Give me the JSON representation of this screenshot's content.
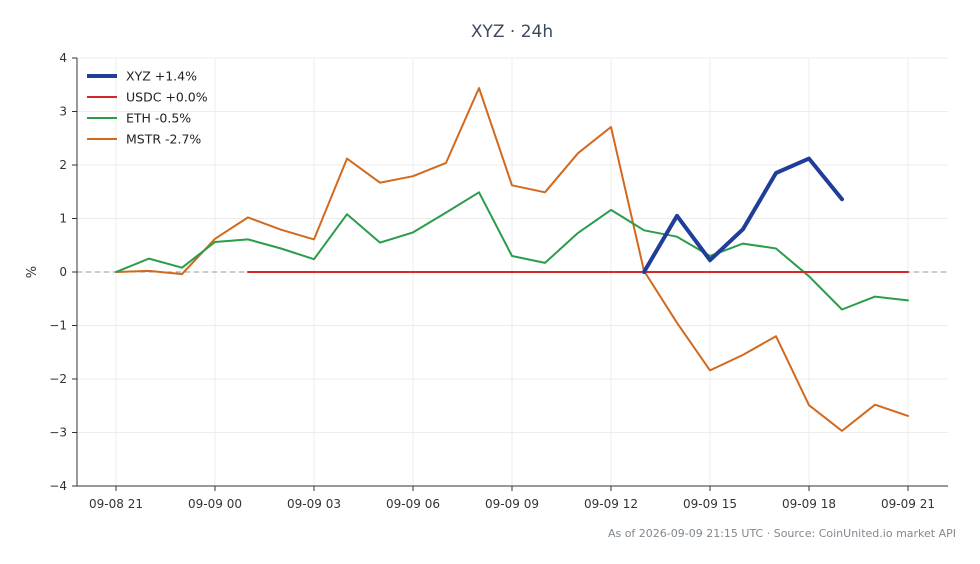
{
  "chart_data": {
    "type": "line",
    "title": "XYZ · 24h",
    "xlabel": "",
    "ylabel": "%",
    "ylim": [
      -4,
      4
    ],
    "yticks": [
      4,
      3,
      2,
      1,
      0,
      -1,
      -2,
      -3,
      -4
    ],
    "yticks_labels": [
      "4",
      "3",
      "2",
      "1",
      "0",
      "−1",
      "−2",
      "−3",
      "−4"
    ],
    "x_start": "2026-09-08 21:00",
    "x_end": "2026-09-09 21:00",
    "xticks_labels": [
      "09-08 21",
      "09-09 00",
      "09-09 03",
      "09-09 06",
      "09-09 09",
      "09-09 12",
      "09-09 15",
      "09-09 18",
      "09-09 21"
    ],
    "grid": true,
    "baseline": 0,
    "legend_position": "top-left",
    "series": [
      {
        "name": "XYZ +1.4%",
        "color": "#1f3d99",
        "x": [
          "2026-09-09 13:00",
          "2026-09-09 14:00",
          "2026-09-09 15:00",
          "2026-09-09 16:00",
          "2026-09-09 17:00",
          "2026-09-09 18:00",
          "2026-09-09 19:00"
        ],
        "values": [
          0.0,
          1.05,
          0.22,
          0.8,
          1.85,
          2.12,
          1.36
        ]
      },
      {
        "name": "USDC +0.0%",
        "color": "#d62728",
        "x": [
          "2026-09-09 01:00",
          "2026-09-09 21:00"
        ],
        "values": [
          0.0,
          0.0
        ]
      },
      {
        "name": "ETH -0.5%",
        "color": "#2a9d4a",
        "x": [
          "2026-09-08 21:00",
          "2026-09-08 22:00",
          "2026-09-08 23:00",
          "2026-09-09 00:00",
          "2026-09-09 01:00",
          "2026-09-09 02:00",
          "2026-09-09 03:00",
          "2026-09-09 04:00",
          "2026-09-09 05:00",
          "2026-09-09 06:00",
          "2026-09-09 07:00",
          "2026-09-09 08:00",
          "2026-09-09 09:00",
          "2026-09-09 10:00",
          "2026-09-09 11:00",
          "2026-09-09 12:00",
          "2026-09-09 13:00",
          "2026-09-09 14:00",
          "2026-09-09 15:00",
          "2026-09-09 16:00",
          "2026-09-09 17:00",
          "2026-09-09 18:00",
          "2026-09-09 19:00",
          "2026-09-09 20:00",
          "2026-09-09 21:00"
        ],
        "values": [
          0.0,
          0.25,
          0.08,
          0.56,
          0.61,
          0.44,
          0.24,
          1.08,
          0.55,
          0.74,
          1.11,
          1.49,
          0.3,
          0.17,
          0.73,
          1.16,
          0.78,
          0.66,
          0.3,
          0.53,
          0.44,
          -0.08,
          -0.7,
          -0.46,
          -0.53
        ]
      },
      {
        "name": "MSTR -2.7%",
        "color": "#d2691e",
        "x": [
          "2026-09-08 21:00",
          "2026-09-08 22:00",
          "2026-09-08 23:00",
          "2026-09-09 00:00",
          "2026-09-09 01:00",
          "2026-09-09 02:00",
          "2026-09-09 03:00",
          "2026-09-09 04:00",
          "2026-09-09 05:00",
          "2026-09-09 06:00",
          "2026-09-09 07:00",
          "2026-09-09 08:00",
          "2026-09-09 09:00",
          "2026-09-09 10:00",
          "2026-09-09 11:00",
          "2026-09-09 12:00",
          "2026-09-09 13:00",
          "2026-09-09 14:00",
          "2026-09-09 15:00",
          "2026-09-09 16:00",
          "2026-09-09 17:00",
          "2026-09-09 18:00",
          "2026-09-09 19:00",
          "2026-09-09 20:00",
          "2026-09-09 21:00"
        ],
        "values": [
          0.0,
          0.02,
          -0.04,
          0.62,
          1.02,
          0.79,
          0.61,
          2.12,
          1.67,
          1.79,
          2.04,
          3.44,
          1.62,
          1.49,
          2.22,
          2.71,
          0.02,
          -0.95,
          -1.84,
          -1.55,
          -1.2,
          -2.49,
          -2.97,
          -2.48,
          -2.69
        ]
      }
    ]
  },
  "footer": {
    "note": "As of 2026-09-09 21:15 UTC · Source: CoinUnited.io market API"
  }
}
